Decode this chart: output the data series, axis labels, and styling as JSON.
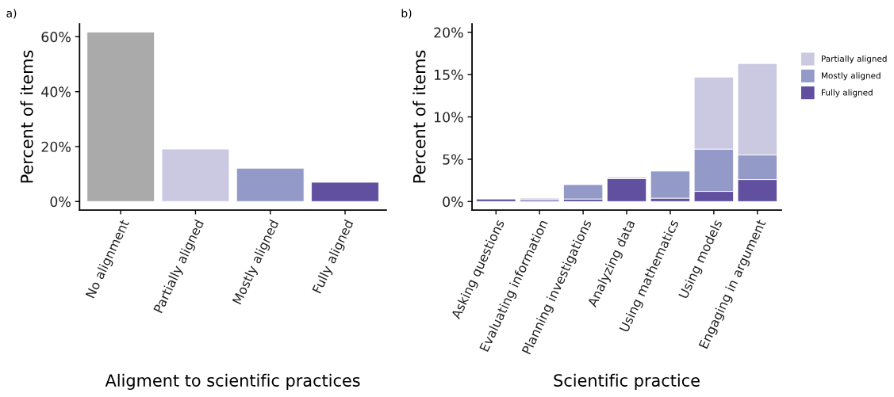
{
  "chart_data": [
    {
      "type": "bar",
      "title": "a)",
      "xlabel": "Aligment to scientific practices",
      "ylabel": "Percent of items",
      "categories": [
        "No alignment",
        "Partially aligned",
        "Mostly aligned",
        "Fully aligned"
      ],
      "values": [
        61.7,
        19.1,
        12.1,
        7.0
      ],
      "colors": [
        "#aaaaaa",
        "#cbc9e1",
        "#949ac7",
        "#6150a0"
      ],
      "ylim": [
        -3.1,
        64.7
      ],
      "yticks": [
        {
          "value": 0,
          "label": "0%"
        },
        {
          "value": 20,
          "label": "20%"
        },
        {
          "value": 40,
          "label": "40%"
        },
        {
          "value": 60,
          "label": "60%"
        }
      ],
      "grid": false,
      "legend": false
    },
    {
      "type": "bar",
      "title": "b)",
      "xlabel": "Scientific practice",
      "ylabel": "Percent of items",
      "stacked": true,
      "categories": [
        "Asking questions",
        "Evaluating information",
        "Planning investigations",
        "Analyzing data",
        "Using mathematics",
        "Using models",
        "Engaging in argument"
      ],
      "series": [
        {
          "name": "Fully aligned",
          "color": "#6150a0",
          "values": [
            0.3,
            0.2,
            0.3,
            2.7,
            0.4,
            1.2,
            2.6
          ]
        },
        {
          "name": "Mostly aligned",
          "color": "#949ac7",
          "values": [
            null,
            null,
            1.7,
            null,
            3.2,
            5.0,
            2.9
          ]
        },
        {
          "name": "Partially aligned",
          "color": "#cbc9e1",
          "values": [
            null,
            0.2,
            null,
            0.2,
            null,
            8.5,
            10.8
          ]
        }
      ],
      "ylim": [
        -1.0,
        21.0
      ],
      "yticks": [
        {
          "value": 0,
          "label": "0%"
        },
        {
          "value": 5,
          "label": "5%"
        },
        {
          "value": 10,
          "label": "10%"
        },
        {
          "value": 15,
          "label": "15%"
        },
        {
          "value": 20,
          "label": "20%"
        }
      ],
      "grid": false,
      "legend": "right"
    }
  ]
}
